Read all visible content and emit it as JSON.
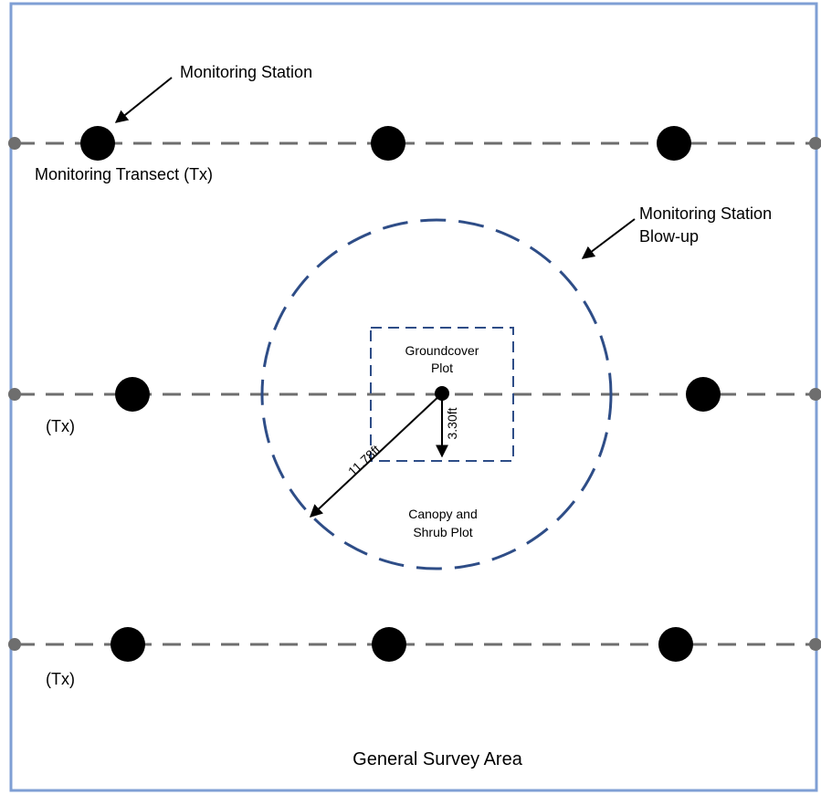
{
  "labels": {
    "monitoring_station": "Monitoring Station",
    "monitoring_transect": "Monitoring Transect (Tx)",
    "transect_short_1": "(Tx)",
    "transect_short_2": "(Tx)",
    "blowup_line1": "Monitoring Station",
    "blowup_line2": "Blow-up",
    "groundcover_line1": "Groundcover",
    "groundcover_line2": "Plot",
    "canopy_line1": "Canopy and",
    "canopy_line2": "Shrub Plot",
    "radius_large": "11.78ft",
    "radius_small": "3.30ft",
    "general_area": "General Survey Area"
  },
  "colors": {
    "border": "#7f9fd4",
    "plot_outline": "#2e4d87",
    "transect": "#6e6e6e",
    "station": "#a6a6a6"
  },
  "icons": [
    "target-icon",
    "arrow-icon"
  ]
}
